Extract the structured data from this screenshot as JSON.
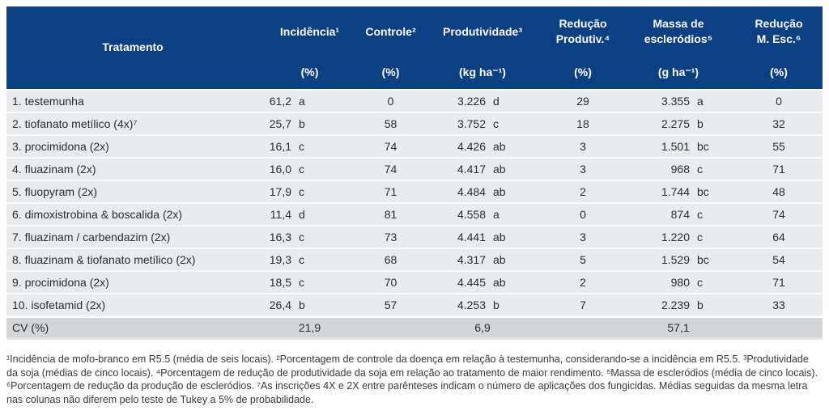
{
  "colors": {
    "header_bg": "#0b4182",
    "header_text": "#ffffff",
    "row_bg": "#e9ebee",
    "cv_row_bg": "#d3d5d7",
    "body_text": "#2d2d2f"
  },
  "table": {
    "header": {
      "treatment_label": "Tratamento",
      "columns": [
        {
          "title": "Incidência¹",
          "unit": "(%)"
        },
        {
          "title": "Controle²",
          "unit": "(%)"
        },
        {
          "title": "Produtividade³",
          "unit": "(kg ha⁻¹)"
        },
        {
          "title": "Redução Produtiv.⁴",
          "unit": "(%)"
        },
        {
          "title": "Massa de escleródios⁵",
          "unit": "(g ha⁻¹)"
        },
        {
          "title": "Redução M. Esc.⁶",
          "unit": "(%)"
        }
      ]
    },
    "rows": [
      {
        "treatment": "1. testemunha",
        "incidencia": "61,2",
        "incidencia_letter": "a",
        "controle": "0",
        "produtividade": "3.226",
        "produtividade_letter": "d",
        "reducao_produtiv": "29",
        "massa": "3.355",
        "massa_letter": "a",
        "reducao_mesc": "0"
      },
      {
        "treatment": "2. tiofanato metílico (4x)⁷",
        "incidencia": "25,7",
        "incidencia_letter": "b",
        "controle": "58",
        "produtividade": "3.752",
        "produtividade_letter": "c",
        "reducao_produtiv": "18",
        "massa": "2.275",
        "massa_letter": "b",
        "reducao_mesc": "32"
      },
      {
        "treatment": "3. procimidona (2x)",
        "incidencia": "16,1",
        "incidencia_letter": "c",
        "controle": "74",
        "produtividade": "4.426",
        "produtividade_letter": "ab",
        "reducao_produtiv": "3",
        "massa": "1.501",
        "massa_letter": "bc",
        "reducao_mesc": "55"
      },
      {
        "treatment": "4. fluazinam (2x)",
        "incidencia": "16,0",
        "incidencia_letter": "c",
        "controle": "74",
        "produtividade": "4.417",
        "produtividade_letter": "ab",
        "reducao_produtiv": "3",
        "massa": "968",
        "massa_letter": "c",
        "reducao_mesc": "71"
      },
      {
        "treatment": "5. fluopyram (2x)",
        "incidencia": "17,9",
        "incidencia_letter": "c",
        "controle": "71",
        "produtividade": "4.484",
        "produtividade_letter": "ab",
        "reducao_produtiv": "2",
        "massa": "1.744",
        "massa_letter": "bc",
        "reducao_mesc": "48"
      },
      {
        "treatment": "6. dimoxistrobina & boscalida (2x)",
        "incidencia": "11,4",
        "incidencia_letter": "d",
        "controle": "81",
        "produtividade": "4.558",
        "produtividade_letter": "a",
        "reducao_produtiv": "0",
        "massa": "874",
        "massa_letter": "c",
        "reducao_mesc": "74"
      },
      {
        "treatment": "7. fluazinam / carbendazim (2x)",
        "incidencia": "16,3",
        "incidencia_letter": "c",
        "controle": "73",
        "produtividade": "4.441",
        "produtividade_letter": "ab",
        "reducao_produtiv": "3",
        "massa": "1.220",
        "massa_letter": "c",
        "reducao_mesc": "64"
      },
      {
        "treatment": "8. fluazinam & tiofanato metílico (2x)",
        "incidencia": "19,3",
        "incidencia_letter": "c",
        "controle": "68",
        "produtividade": "4.317",
        "produtividade_letter": "ab",
        "reducao_produtiv": "5",
        "massa": "1.529",
        "massa_letter": "bc",
        "reducao_mesc": "54"
      },
      {
        "treatment": "9. procimidona (2x)",
        "incidencia": "18,5",
        "incidencia_letter": "c",
        "controle": "70",
        "produtividade": "4.445",
        "produtividade_letter": "ab",
        "reducao_produtiv": "2",
        "massa": "980",
        "massa_letter": "c",
        "reducao_mesc": "71"
      },
      {
        "treatment": "10. isofetamid (2x)",
        "incidencia": "26,4",
        "incidencia_letter": "b",
        "controle": "57",
        "produtividade": "4.253",
        "produtividade_letter": "b",
        "reducao_produtiv": "7",
        "massa": "2.239",
        "massa_letter": "b",
        "reducao_mesc": "33"
      }
    ],
    "cv_row": {
      "label": "CV (%)",
      "incidencia": "21,9",
      "produtividade": "6,9",
      "massa": "57,1"
    }
  },
  "footnote": "¹Incidência de mofo-branco em R5.5 (média de seis locais).  ²Porcentagem de controle da doença em relação à testemunha, considerando-se a incidência em R5.5.  ³Produtividade da soja (médias de cinco locais). ⁴Porcentagem de redução de produtividade da soja em relação ao tratamento de maior rendimento. ⁵Massa de escleródios (média de cinco locais). ⁶Porcentagem de redução da produção de escleródios. ⁷As inscrições 4X e 2X entre parênteses indicam o número de aplicações dos fungicidas. Médias seguidas da mesma letra nas colunas não diferem pelo teste de Tukey a 5% de probabilidade."
}
